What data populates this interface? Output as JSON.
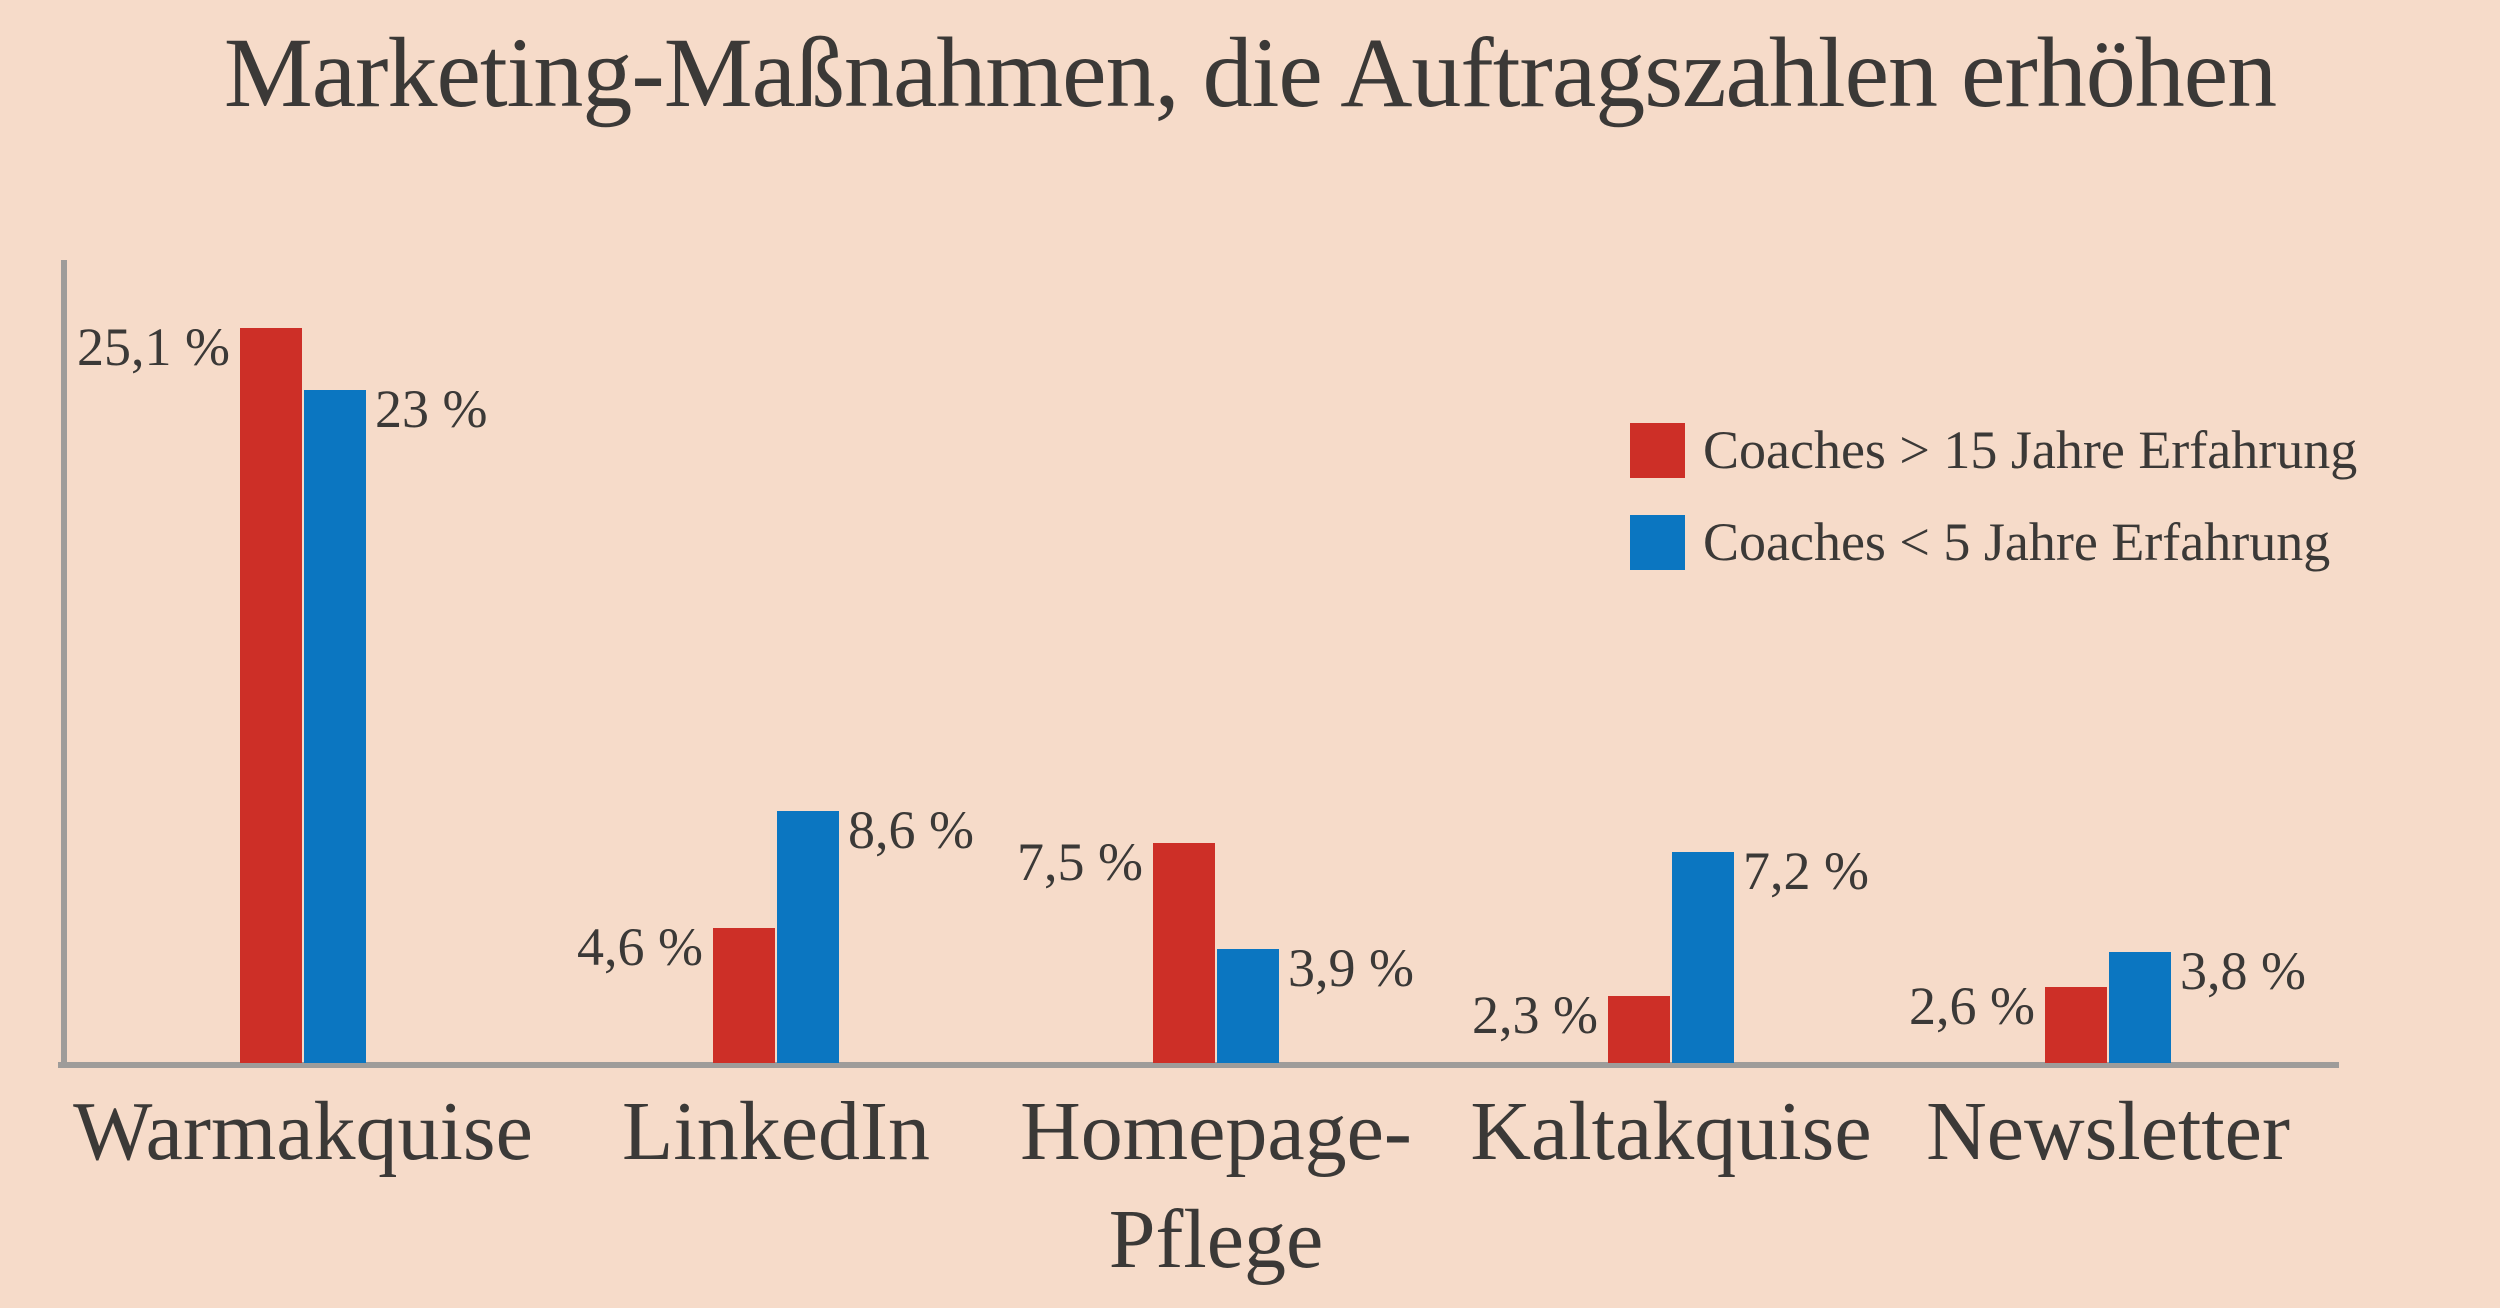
{
  "title": "Marketing-Maßnahmen, die Auftragszahlen erhöhen",
  "colors": {
    "background": "#f6dbc9",
    "series_red": "#cd2f27",
    "series_blue": "#0b76c1",
    "axis": "#9e9c9a",
    "text": "#3b3937"
  },
  "legend": {
    "items": [
      {
        "label": "Coaches > 15 Jahre Erfahrung",
        "color": "#cd2f27"
      },
      {
        "label": "Coaches < 5 Jahre Erfahrung",
        "color": "#0b76c1"
      }
    ]
  },
  "chart_data": {
    "type": "bar",
    "title": "Marketing-Maßnahmen, die Auftragszahlen erhöhen",
    "categories": [
      "Warmakquise",
      "LinkedIn",
      "Homepage-\nPflege",
      "Kaltakquise",
      "Newsletter"
    ],
    "series": [
      {
        "name": "Coaches > 15 Jahre Erfahrung",
        "color": "#cd2f27",
        "values": [
          25.1,
          4.6,
          7.5,
          2.3,
          2.6
        ],
        "value_labels": [
          "25,1 %",
          "4,6 %",
          "7,5 %",
          "2,3 %",
          "2,6 %"
        ]
      },
      {
        "name": "Coaches < 5 Jahre Erfahrung",
        "color": "#0b76c1",
        "values": [
          23,
          8.6,
          3.9,
          7.2,
          3.8
        ],
        "value_labels": [
          "23 %",
          "8,6 %",
          "3,9 %",
          "7,2 %",
          "3,8 %"
        ]
      }
    ],
    "xlabel": "",
    "ylabel": "",
    "ylim": [
      0,
      27.5
    ],
    "grid": false,
    "y_axis_ticks": [],
    "legend_position": "upper-right",
    "value_label_style": "german decimal comma, space before %, red labels left of bar, blue labels right of bar"
  }
}
